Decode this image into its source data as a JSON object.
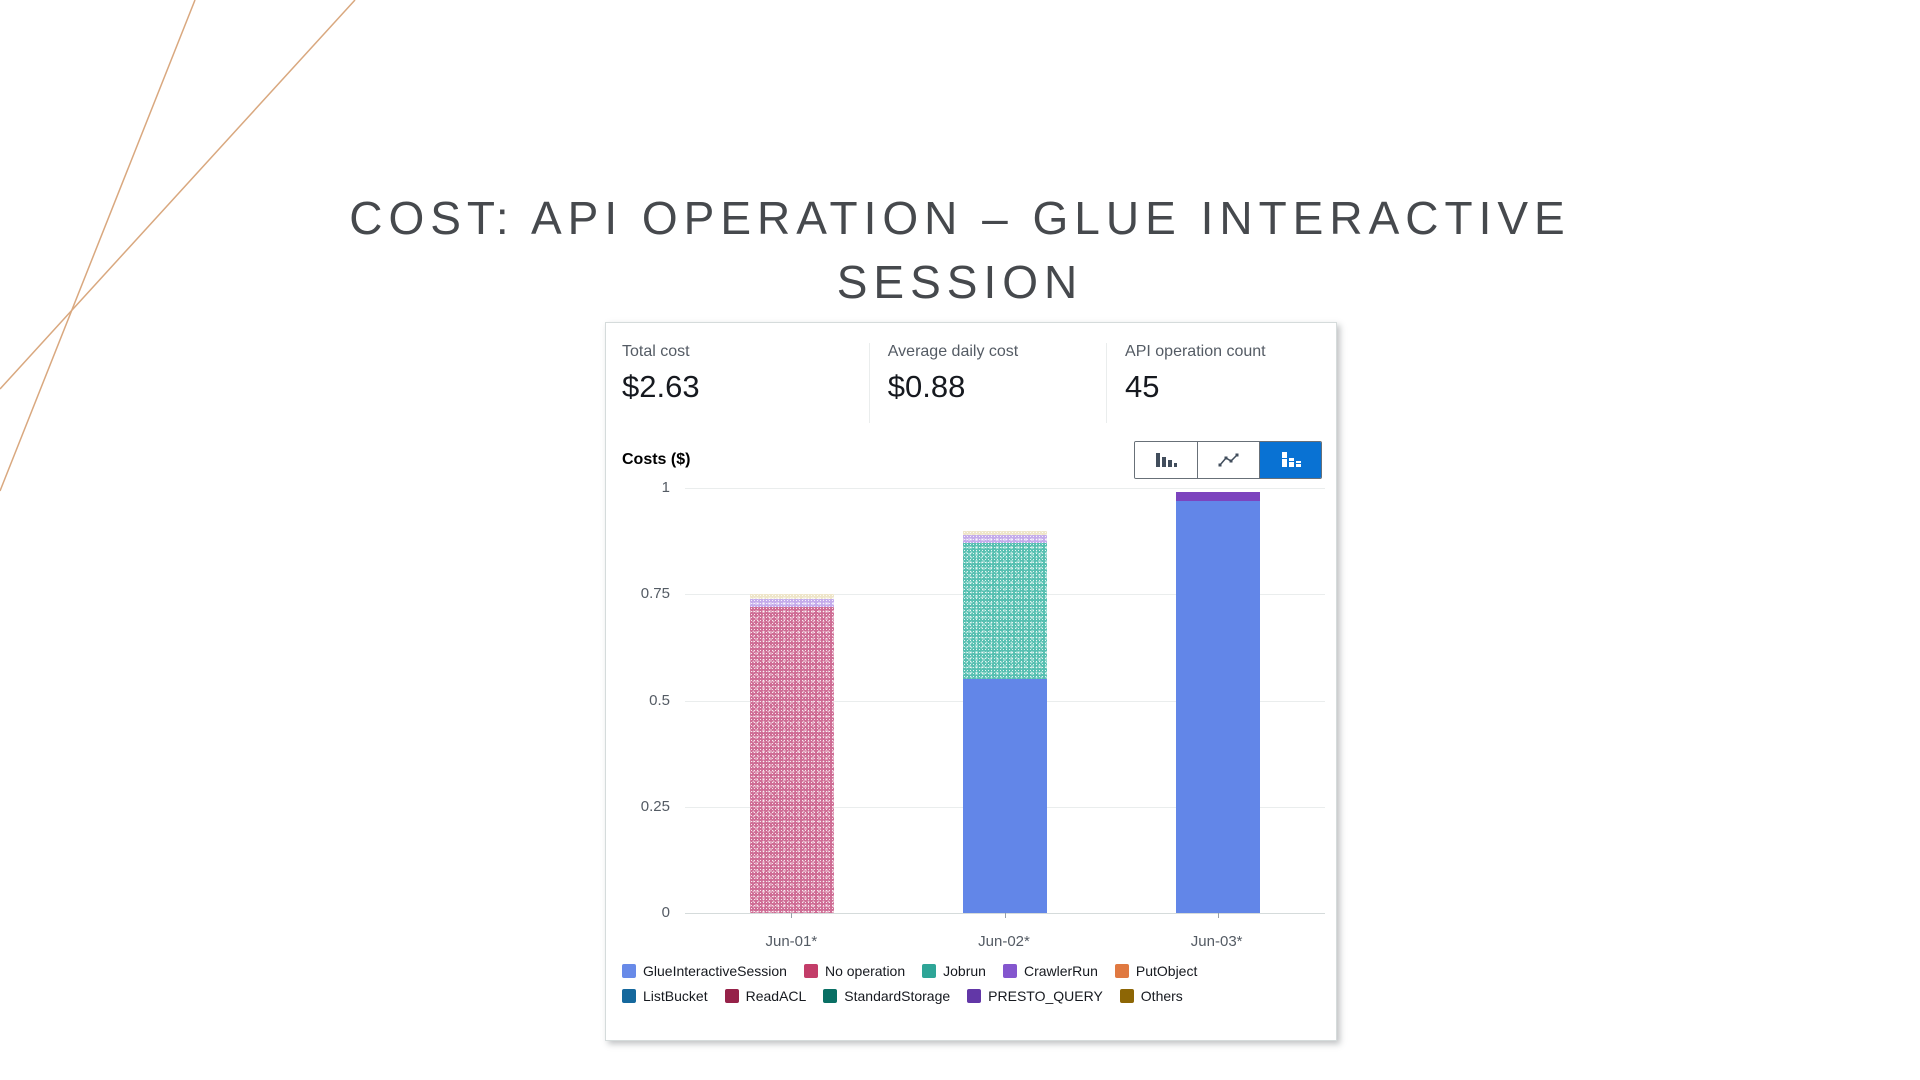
{
  "slide": {
    "title": "COST: API OPERATION – GLUE INTERACTIVE SESSION",
    "accent_line_color": "#d9a87f"
  },
  "panel": {
    "stats": [
      {
        "label": "Total cost",
        "value": "$2.63"
      },
      {
        "label": "Average daily cost",
        "value": "$0.88"
      },
      {
        "label": "API operation count",
        "value": "45"
      }
    ],
    "chart_header": {
      "title": "Costs ($)"
    },
    "toolbar": {
      "buttons": [
        "bar-chart",
        "line-chart",
        "stacked-bar-chart"
      ],
      "selected_index": 2,
      "selected_bg": "#0972d3",
      "icon_color": "#414d5c"
    }
  },
  "chart_data": {
    "type": "bar",
    "stacked": true,
    "title": "Costs ($)",
    "xlabel": "",
    "ylabel": "Costs ($)",
    "ylim": [
      0,
      1
    ],
    "yticks": [
      0,
      0.25,
      0.5,
      0.75,
      1
    ],
    "ytick_labels": [
      "0",
      "0.25",
      "0.5",
      "0.75",
      "1"
    ],
    "grid": "horizontal",
    "legend_position": "bottom",
    "categories": [
      "Jun-01*",
      "Jun-02*",
      "Jun-03*"
    ],
    "category_totals": [
      0.75,
      0.9,
      0.99
    ],
    "series": [
      {
        "name": "GlueInteractiveSession",
        "color": "#688ae8",
        "bar_fill": "#6286e8",
        "textured": false,
        "values": [
          0,
          0.55,
          0.97
        ]
      },
      {
        "name": "No operation",
        "color": "#c33d69",
        "bar_fill": "#cf6d95",
        "textured": true,
        "values": [
          0.72,
          0,
          0
        ]
      },
      {
        "name": "Jobrun",
        "color": "#2ea597",
        "bar_fill": "#57c0b1",
        "textured": true,
        "values": [
          0,
          0.32,
          0
        ]
      },
      {
        "name": "CrawlerRun",
        "color": "#8456ce",
        "bar_fill": "#c4aceb",
        "textured": true,
        "values": [
          0.02,
          0.02,
          0
        ]
      },
      {
        "name": "PutObject",
        "color": "#e07941",
        "bar_fill": "#e07941",
        "textured": false,
        "values": [
          0,
          0,
          0
        ]
      },
      {
        "name": "ListBucket",
        "color": "#15689d",
        "bar_fill": "#15689d",
        "textured": false,
        "values": [
          0,
          0,
          0
        ]
      },
      {
        "name": "ReadACL",
        "color": "#962249",
        "bar_fill": "#962249",
        "textured": false,
        "values": [
          0,
          0,
          0
        ]
      },
      {
        "name": "StandardStorage",
        "color": "#096f64",
        "bar_fill": "#096f64",
        "textured": false,
        "values": [
          0,
          0,
          0
        ]
      },
      {
        "name": "PRESTO_QUERY",
        "color": "#6237a7",
        "bar_fill": "#7c44be",
        "textured": false,
        "values": [
          0,
          0,
          0.02
        ]
      },
      {
        "name": "Others",
        "color": "#8d6605",
        "bar_fill": "#eee5c9",
        "textured": true,
        "values": [
          0.01,
          0.01,
          0
        ]
      }
    ]
  }
}
